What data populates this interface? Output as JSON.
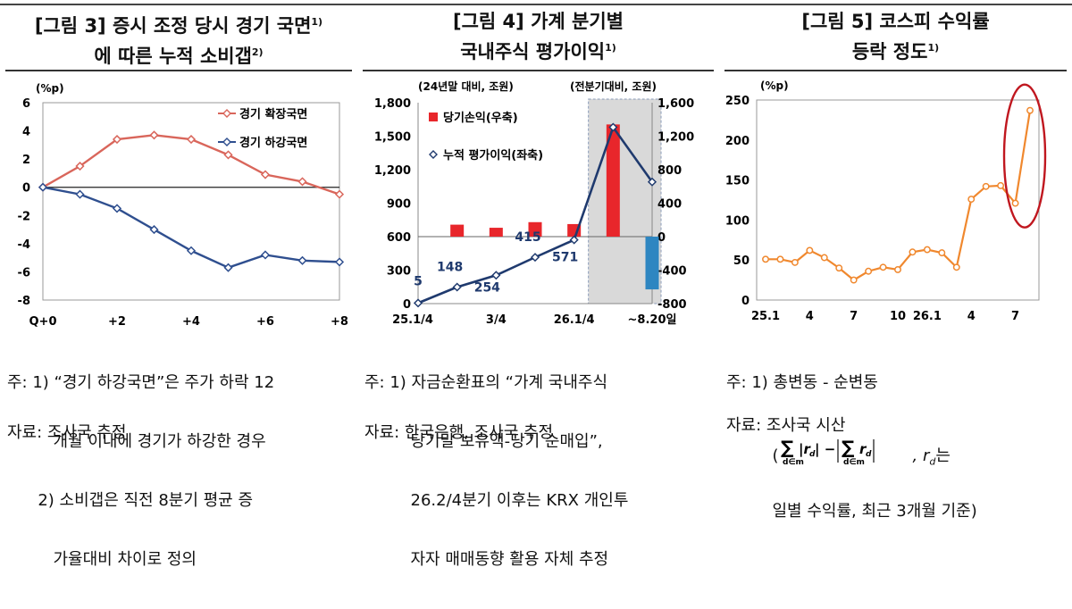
{
  "chart_data": [
    {
      "type": "line",
      "title": "[그림 3] 증시 조정 당시 경기 국면",
      "title_sup1": "1)",
      "title_line2": "에 따른 누적 소비갭",
      "title_sup2": "2)",
      "unit": "(%p)",
      "x_ticks": [
        "Q+0",
        "+2",
        "+4",
        "+6",
        "+8"
      ],
      "x": [
        0,
        1,
        2,
        3,
        4,
        5,
        6,
        7,
        8
      ],
      "ylim": [
        -8,
        6
      ],
      "y_ticks": [
        "6",
        "4",
        "2",
        "0",
        "-2",
        "-4",
        "-6",
        "-8"
      ],
      "series": [
        {
          "name": "경기 확장국면",
          "color": "#D9665B",
          "values": [
            0,
            1.5,
            3.4,
            3.7,
            3.4,
            2.3,
            0.9,
            0.4,
            -0.5
          ]
        },
        {
          "name": "경기 하강국면",
          "color": "#2F4F8F",
          "values": [
            0,
            -0.5,
            -1.5,
            -3.0,
            -4.5,
            -5.7,
            -4.8,
            -5.2,
            -5.3
          ]
        }
      ],
      "notes": [
        "주: 1) “경기 하강국면”은 주가 하락 12",
        "         개월 이내에 경기가 하강한 경우",
        "      2) 소비갭은 직전 8분기 평균 증",
        "         가율대비 차이로 정의"
      ],
      "source": "자료: 조사국 추정"
    },
    {
      "type": "bar+line",
      "title": "[그림 4] 가계 분기별",
      "title_line2": "국내주식 평가이익",
      "title_sup2": "1)",
      "left_unit": "(24년말 대비, 조원)",
      "right_unit": "(전분기대비, 조원)",
      "x_ticks": [
        "25.1/4",
        "3/4",
        "26.1/4",
        "~8.20일"
      ],
      "left_ylim": [
        0,
        1800
      ],
      "left_ticks": [
        "1,800",
        "1,500",
        "1,200",
        "900",
        "600",
        "300",
        "0"
      ],
      "right_ylim": [
        -800,
        1600
      ],
      "right_ticks": [
        "1,600",
        "1,200",
        "800",
        "400",
        "0",
        "-400",
        "-800"
      ],
      "bar_series": {
        "name": "당기손익(우축)",
        "color": "#E8262B",
        "values": [
          143,
          106,
          173,
          150,
          1340,
          -630
        ],
        "last_color": "#2E86C1"
      },
      "line_series": {
        "name": "누적 평가이익(좌축)",
        "color": "#1F3A6E",
        "values": [
          5,
          148,
          254,
          415,
          571,
          1580,
          1090
        ]
      },
      "data_labels": [
        "5",
        "148",
        "254",
        "415",
        "571"
      ],
      "notes": [
        "주: 1) 자금순환표의 “가계 국내주식",
        "         당기말 보유액-당기 순매입”,",
        "         26.2/4분기 이후는 KRX 개인투",
        "         자자 매매동향 활용 자체 추정"
      ],
      "source": "자료: 한국은행, 조사국 추정"
    },
    {
      "type": "line",
      "title": "[그림 5] 코스피 수익률",
      "title_line2": "등락 정도",
      "title_sup2": "1)",
      "unit": "(%p)",
      "x_ticks": [
        "25.1",
        "4",
        "7",
        "10",
        "26.1",
        "4",
        "7"
      ],
      "ylim": [
        0,
        250
      ],
      "y_ticks": [
        "250",
        "200",
        "150",
        "100",
        "50",
        "0"
      ],
      "series": [
        {
          "color": "#F0882E",
          "values": [
            51,
            51,
            47,
            62,
            53,
            40,
            25,
            36,
            41,
            38,
            60,
            63,
            59,
            41,
            126,
            142,
            143,
            121,
            237
          ]
        }
      ],
      "highlight_color": "#C0171F",
      "notes_line1": "주: 1) 총변동 - 순변동",
      "notes_formula_tail": ", r",
      "notes_formula_sub": "d",
      "notes_formula_end": "는",
      "notes_line3": "         일별 수익률, 최근 3개월 기준)",
      "source": "자료: 조사국 시산"
    }
  ]
}
